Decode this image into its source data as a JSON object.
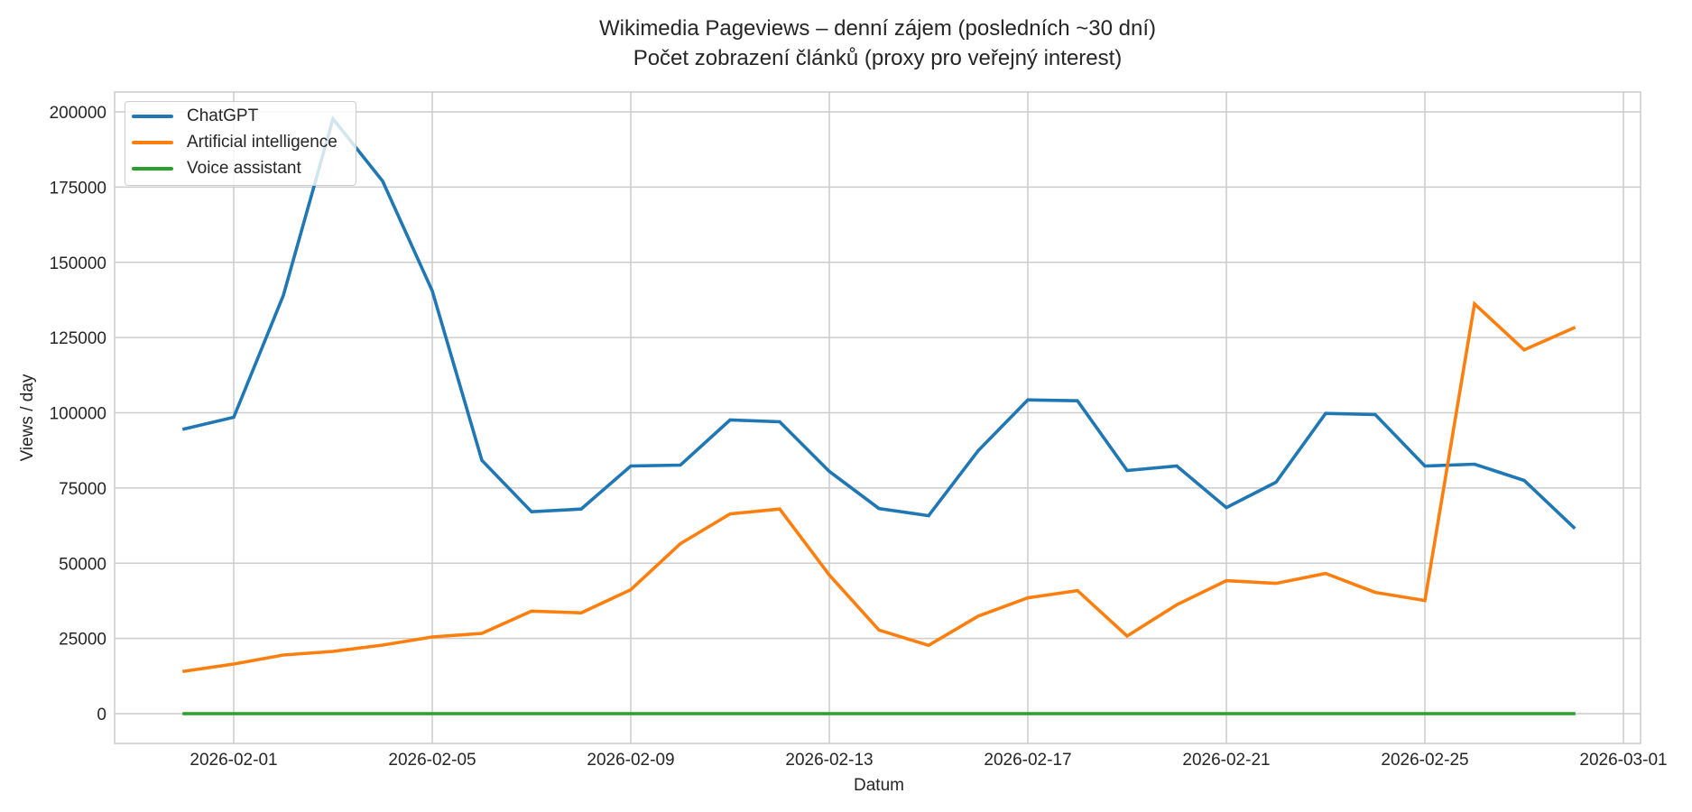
{
  "chart_data": {
    "type": "line",
    "title": "Wikimedia Pageviews – denní zájem (posledních ~30 dní)",
    "subtitle": "Počet zobrazení článků (proxy pro veřejný interest)",
    "xlabel": "Datum",
    "ylabel": "Views / day",
    "ylim": [
      -10000,
      210000
    ],
    "grid": true,
    "legend_position": "upper left",
    "x": [
      "2026-01-31",
      "2026-02-01",
      "2026-02-02",
      "2026-02-03",
      "2026-02-04",
      "2026-02-05",
      "2026-02-06",
      "2026-02-07",
      "2026-02-08",
      "2026-02-09",
      "2026-02-10",
      "2026-02-11",
      "2026-02-12",
      "2026-02-13",
      "2026-02-14",
      "2026-02-15",
      "2026-02-16",
      "2026-02-17",
      "2026-02-18",
      "2026-02-19",
      "2026-02-20",
      "2026-02-21",
      "2026-02-22",
      "2026-02-23",
      "2026-02-24",
      "2026-02-25",
      "2026-02-26",
      "2026-02-27",
      "2026-02-28"
    ],
    "x_ticks": [
      "2026-02-01",
      "2026-02-05",
      "2026-02-09",
      "2026-02-13",
      "2026-02-17",
      "2026-02-21",
      "2026-02-25",
      "2026-03-01"
    ],
    "y_ticks": [
      0,
      25000,
      50000,
      75000,
      100000,
      125000,
      150000,
      175000,
      200000
    ],
    "series": [
      {
        "name": "ChatGPT",
        "color": "#1f77b4",
        "values": [
          94600,
          98500,
          139000,
          197700,
          177000,
          140500,
          84200,
          67100,
          68000,
          82300,
          82600,
          97600,
          97000,
          80500,
          68200,
          65800,
          87400,
          104300,
          104000,
          80800,
          82300,
          68500,
          76900,
          99800,
          99400,
          82300,
          82900,
          77500,
          61900
        ]
      },
      {
        "name": "Artificial intelligence",
        "color": "#ff7f0e",
        "values": [
          14100,
          16500,
          19500,
          20700,
          22800,
          25500,
          26700,
          34100,
          33500,
          41200,
          56500,
          66400,
          68000,
          46100,
          27800,
          22700,
          32400,
          38500,
          40900,
          25800,
          36200,
          44200,
          43300,
          46600,
          40300,
          37600,
          136200,
          120900,
          128200
        ]
      },
      {
        "name": "Voice assistant",
        "color": "#2ca02c",
        "values": [
          0,
          0,
          0,
          0,
          0,
          0,
          0,
          0,
          0,
          0,
          0,
          0,
          0,
          0,
          0,
          0,
          0,
          0,
          0,
          0,
          0,
          0,
          0,
          0,
          0,
          0,
          0,
          0,
          0
        ]
      }
    ]
  }
}
